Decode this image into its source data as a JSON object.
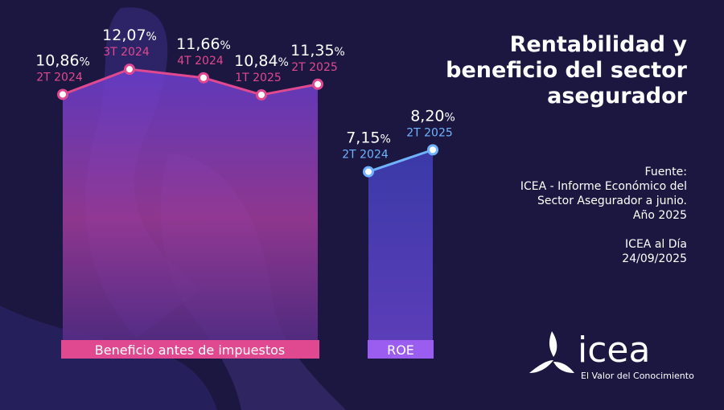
{
  "title": "Rentabilidad y beneficio del sector asegurador",
  "title_lines": [
    "Rentabilidad y",
    "beneficio del sector",
    "asegurador"
  ],
  "source": {
    "lines": [
      "Fuente:",
      "ICEA - Informe Económico del",
      "Sector Asegurador a junio.",
      "Año 2025"
    ],
    "footer": [
      "ICEA al Día",
      "24/09/2025"
    ]
  },
  "logo": {
    "word": "icea",
    "tagline": "El Valor del Conocimiento",
    "icon": "icea-tri-blade-logo-icon"
  },
  "colors": {
    "background": "#1b1740",
    "beneficio_line": "#e0498f",
    "beneficio_band": "#e0498f",
    "roe_line": "#6fb3ff",
    "roe_band": "#9b5cf0",
    "white": "#ffffff"
  },
  "chart_data": [
    {
      "type": "line",
      "name": "Beneficio antes de impuestos",
      "band_label": "Beneficio antes de impuestos",
      "categories": [
        "2T 2024",
        "3T 2024",
        "4T 2024",
        "1T 2025",
        "2T 2025"
      ],
      "values": [
        10.86,
        12.07,
        11.66,
        10.84,
        11.35
      ],
      "value_labels": [
        "10,86",
        "12,07",
        "11,66",
        "10,84",
        "11,35"
      ],
      "unit": "%",
      "ylim": [
        0,
        13
      ]
    },
    {
      "type": "line",
      "name": "ROE",
      "band_label": "ROE",
      "categories": [
        "2T 2024",
        "2T 2025"
      ],
      "values": [
        7.15,
        8.2
      ],
      "value_labels": [
        "7,15",
        "8,20"
      ],
      "unit": "%",
      "ylim": [
        0,
        13
      ]
    }
  ]
}
